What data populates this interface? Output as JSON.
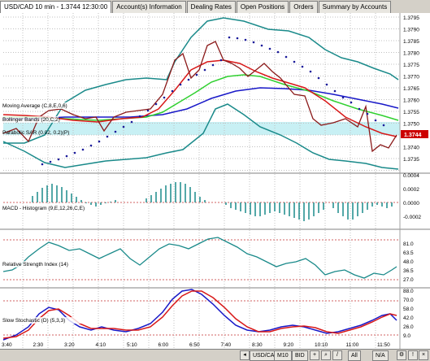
{
  "tabs": [
    {
      "label": "USD/CAD 10 min - 1.3744 12:30:00",
      "active": true
    },
    {
      "label": "Account(s) Information",
      "active": false
    },
    {
      "label": "Dealing Rates",
      "active": false
    },
    {
      "label": "Open Positions",
      "active": false
    },
    {
      "label": "Orders",
      "active": false
    },
    {
      "label": "Summary by Accounts",
      "active": false
    }
  ],
  "indicators": {
    "ma_label": "Moving Average (C,8,E,0,6)",
    "bb_label": "Bollinger Bands (20,C,2)",
    "sar_label": "Parabolic SAR (0.02, 0.2)(P)",
    "macd_label": "MACD - Histogram (9,E,12,26,C,E)",
    "rsi_label": "Relative Strength Index (14)",
    "stoch_label": "Slow Stochastic (D) (5,3,3)"
  },
  "price_badge": "1.3744",
  "colors": {
    "badge": "#cc0000",
    "band": "#c8f0f4",
    "bb": "#1a8a8a",
    "ma_red": "#d81818",
    "ma_green": "#30d030",
    "ma_blue": "#1818c8",
    "price": "#8b1a1a",
    "sar": "#1a1a9a"
  },
  "price_axis": [
    "1.3795",
    "1.3790",
    "1.3785",
    "1.3780",
    "1.3775",
    "1.3770",
    "1.3765",
    "1.3760",
    "1.3755",
    "1.3750",
    "1.3745",
    "1.3740",
    "1.3735"
  ],
  "macd_axis": [
    "0.0004",
    "0.0002",
    "0.0000",
    "-0.0002"
  ],
  "rsi_axis": [
    "81.0",
    "63.5",
    "48.0",
    "36.5",
    "27.0"
  ],
  "stoch_axis": [
    "88.0",
    "70.0",
    "58.0",
    "42.0",
    "26.0",
    "9.0"
  ],
  "time_labels": [
    "3:40",
    "2:30",
    "3:20",
    "4:10",
    "5:10",
    "6:00",
    "6:50",
    "7:40",
    "8:30",
    "9:20",
    "10:10",
    "11:00",
    "11:50"
  ],
  "bottom": {
    "symbol": "USD/CAD",
    "timeframe": "M10",
    "mode": "BID",
    "view_all": "All",
    "view_na": "N/A"
  }
}
